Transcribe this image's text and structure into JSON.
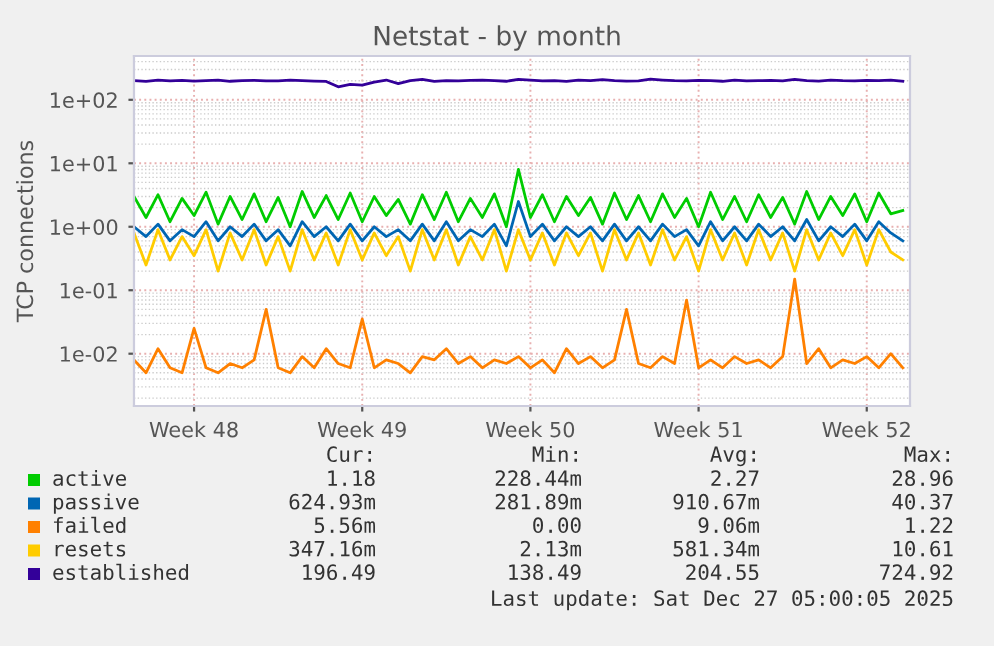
{
  "chart_data": {
    "type": "line",
    "title": "Netstat - by month",
    "ylabel": "TCP connections",
    "categories": [
      null,
      null,
      null,
      null,
      null,
      "Week 48",
      null,
      null,
      null,
      null,
      null,
      null,
      null,
      null,
      null,
      null,
      null,
      null,
      null,
      "Week 49",
      null,
      null,
      null,
      null,
      null,
      null,
      null,
      null,
      null,
      null,
      null,
      null,
      null,
      "Week 50",
      null,
      null,
      null,
      null,
      null,
      null,
      null,
      null,
      null,
      null,
      null,
      null,
      null,
      "Week 51",
      null,
      null,
      null,
      null,
      null,
      null,
      null,
      null,
      null,
      null,
      null,
      null,
      null,
      "Week 52",
      null,
      null,
      null
    ],
    "series": [
      {
        "name": "active",
        "color": "#00cc00",
        "values": [
          3.0,
          1.4,
          3.2,
          1.2,
          2.8,
          1.5,
          3.5,
          1.1,
          3.0,
          1.3,
          3.3,
          1.2,
          2.9,
          1.0,
          3.6,
          1.4,
          3.1,
          1.3,
          3.4,
          1.2,
          3.0,
          1.5,
          2.7,
          1.1,
          3.2,
          1.3,
          3.5,
          1.2,
          2.8,
          1.4,
          3.3,
          1.0,
          8.0,
          1.4,
          3.2,
          1.2,
          3.0,
          1.5,
          2.9,
          1.1,
          3.4,
          1.3,
          3.1,
          1.2,
          3.3,
          1.4,
          2.8,
          1.0,
          3.5,
          1.3,
          3.0,
          1.2,
          3.2,
          1.4,
          2.9,
          1.1,
          3.6,
          1.3,
          3.0,
          1.5,
          3.3,
          1.2,
          3.4,
          1.6,
          1.8
        ]
      },
      {
        "name": "passive",
        "color": "#0066b3",
        "values": [
          1.0,
          0.7,
          1.1,
          0.6,
          0.9,
          0.7,
          1.2,
          0.6,
          1.0,
          0.7,
          1.1,
          0.6,
          0.9,
          0.5,
          1.2,
          0.7,
          1.0,
          0.6,
          1.1,
          0.6,
          1.0,
          0.7,
          0.9,
          0.6,
          1.1,
          0.6,
          1.2,
          0.6,
          0.9,
          0.7,
          1.1,
          0.5,
          2.5,
          0.7,
          1.1,
          0.6,
          1.0,
          0.7,
          1.0,
          0.6,
          1.1,
          0.6,
          1.0,
          0.6,
          1.1,
          0.7,
          0.9,
          0.5,
          1.2,
          0.6,
          1.0,
          0.6,
          1.1,
          0.7,
          1.0,
          0.6,
          1.3,
          0.6,
          1.0,
          0.7,
          1.1,
          0.6,
          1.2,
          0.8,
          0.6
        ]
      },
      {
        "name": "failed",
        "color": "#ff8000",
        "values": [
          0.008,
          0.005,
          0.012,
          0.006,
          0.005,
          0.025,
          0.006,
          0.005,
          0.007,
          0.006,
          0.008,
          0.05,
          0.006,
          0.005,
          0.009,
          0.006,
          0.012,
          0.007,
          0.006,
          0.035,
          0.006,
          0.008,
          0.007,
          0.005,
          0.009,
          0.008,
          0.012,
          0.007,
          0.009,
          0.006,
          0.008,
          0.007,
          0.009,
          0.006,
          0.008,
          0.005,
          0.012,
          0.007,
          0.009,
          0.006,
          0.008,
          0.05,
          0.007,
          0.006,
          0.009,
          0.007,
          0.07,
          0.006,
          0.008,
          0.006,
          0.009,
          0.007,
          0.008,
          0.006,
          0.009,
          0.15,
          0.007,
          0.012,
          0.006,
          0.008,
          0.007,
          0.009,
          0.006,
          0.01,
          0.006
        ]
      },
      {
        "name": "resets",
        "color": "#ffcc00",
        "values": [
          0.8,
          0.25,
          0.9,
          0.3,
          0.7,
          0.35,
          0.9,
          0.2,
          0.8,
          0.3,
          0.9,
          0.25,
          0.7,
          0.2,
          0.9,
          0.3,
          0.8,
          0.25,
          0.9,
          0.3,
          0.8,
          0.35,
          0.7,
          0.2,
          0.9,
          0.3,
          0.9,
          0.25,
          0.7,
          0.3,
          0.9,
          0.2,
          0.9,
          0.3,
          0.8,
          0.25,
          0.8,
          0.35,
          0.8,
          0.2,
          0.9,
          0.3,
          0.8,
          0.25,
          0.9,
          0.3,
          0.7,
          0.2,
          0.9,
          0.3,
          0.8,
          0.25,
          0.9,
          0.3,
          0.8,
          0.2,
          0.9,
          0.3,
          0.8,
          0.35,
          0.9,
          0.25,
          0.9,
          0.4,
          0.3
        ]
      },
      {
        "name": "established",
        "color": "#330099",
        "values": [
          200,
          195,
          205,
          198,
          202,
          197,
          200,
          204,
          196,
          201,
          203,
          199,
          198,
          205,
          200,
          197,
          195,
          160,
          175,
          170,
          190,
          205,
          180,
          200,
          210,
          195,
          200,
          198,
          202,
          205,
          200,
          196,
          210,
          204,
          198,
          200,
          195,
          205,
          200,
          208,
          200,
          197,
          199,
          212,
          205,
          200,
          198,
          203,
          200,
          196,
          205,
          199,
          200,
          202,
          198,
          210,
          200,
          197,
          205,
          200,
          199,
          203,
          200,
          205,
          196
        ]
      }
    ],
    "log": "y",
    "ylim": [
      0.0015,
      490
    ],
    "yticks": [
      {
        "value": 0.01,
        "label": "1e-02"
      },
      {
        "value": 0.1,
        "label": "1e-01"
      },
      {
        "value": 1,
        "label": "1e+00"
      },
      {
        "value": 10,
        "label": "1e+01"
      },
      {
        "value": 100,
        "label": "1e+02"
      }
    ],
    "grid": true,
    "legend": "bottom",
    "marker": "none",
    "line_style": "solid",
    "annotations": [
      "Cur:",
      "Min:",
      "Avg:",
      "Max:",
      "1.18",
      "228.44m",
      "2.27",
      "28.96",
      "624.93m",
      "281.89m",
      "910.67m",
      "40.37",
      "5.56m",
      "0.00",
      "9.06m",
      "1.22",
      "347.16m",
      "2.13m",
      "581.34m",
      "10.61",
      "196.49",
      "138.49",
      "204.55",
      "724.92",
      "Last update: Sat Dec 27 05:00:05 2025"
    ]
  }
}
